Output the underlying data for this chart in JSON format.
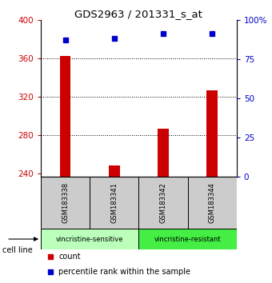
{
  "title": "GDS2963 / 201331_s_at",
  "samples": [
    "GSM183338",
    "GSM183341",
    "GSM183342",
    "GSM183344"
  ],
  "bar_values": [
    362,
    248,
    287,
    327
  ],
  "bar_bottom": 237,
  "percentile_values": [
    87,
    88,
    91,
    91
  ],
  "ylim": [
    237,
    400
  ],
  "yticks_left": [
    240,
    280,
    320,
    360,
    400
  ],
  "yticks_right": [
    0,
    25,
    50,
    75,
    100
  ],
  "bar_color": "#cc0000",
  "dot_color": "#0000cc",
  "groups": [
    {
      "label": "vincristine-sensitive",
      "start": 0,
      "end": 2,
      "color": "#bbffbb"
    },
    {
      "label": "vincristine-resistant",
      "start": 2,
      "end": 4,
      "color": "#44ee44"
    }
  ],
  "cell_line_label": "cell line",
  "legend_items": [
    {
      "label": "count",
      "color": "#cc0000"
    },
    {
      "label": "percentile rank within the sample",
      "color": "#0000cc"
    }
  ],
  "sample_box_color": "#cccccc",
  "bg_color": "#ffffff"
}
